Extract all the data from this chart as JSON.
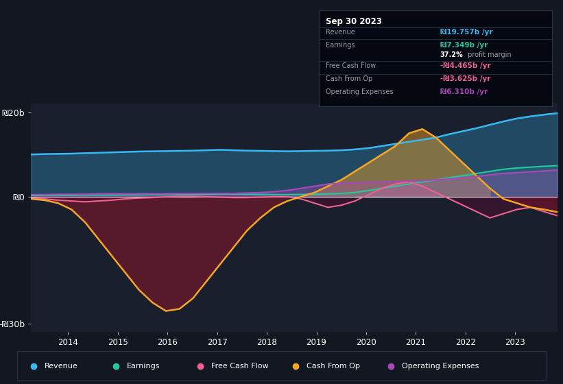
{
  "background_color": "#131722",
  "plot_bg_color": "#1a1f2e",
  "y_label_20b": "₪20b",
  "y_label_0": "₪0",
  "y_label_neg30b": "-₪30b",
  "x_ticks": [
    "2014",
    "2015",
    "2016",
    "2017",
    "2018",
    "2019",
    "2020",
    "2021",
    "2022",
    "2023"
  ],
  "legend_items": [
    {
      "label": "Revenue",
      "color": "#38b8f2"
    },
    {
      "label": "Earnings",
      "color": "#26c6a0"
    },
    {
      "label": "Free Cash Flow",
      "color": "#f06292"
    },
    {
      "label": "Cash From Op",
      "color": "#f5a623"
    },
    {
      "label": "Operating Expenses",
      "color": "#ab47bc"
    }
  ],
  "info_box_title": "Sep 30 2023",
  "revenue": [
    10.0,
    10.1,
    10.15,
    10.2,
    10.3,
    10.4,
    10.5,
    10.6,
    10.7,
    10.75,
    10.8,
    10.85,
    10.9,
    11.0,
    11.1,
    11.0,
    10.9,
    10.85,
    10.8,
    10.75,
    10.8,
    10.85,
    10.9,
    11.0,
    11.2,
    11.5,
    12.0,
    12.5,
    13.0,
    13.5,
    14.0,
    14.8,
    15.5,
    16.2,
    17.0,
    17.8,
    18.5,
    19.0,
    19.4,
    19.757
  ],
  "earnings": [
    0.3,
    0.35,
    0.35,
    0.35,
    0.4,
    0.4,
    0.4,
    0.45,
    0.45,
    0.5,
    0.5,
    0.55,
    0.55,
    0.6,
    0.65,
    0.65,
    0.6,
    0.55,
    0.5,
    0.5,
    0.55,
    0.6,
    0.7,
    0.8,
    1.0,
    1.5,
    2.0,
    2.5,
    3.0,
    3.5,
    4.0,
    4.5,
    5.0,
    5.5,
    6.0,
    6.5,
    6.8,
    7.0,
    7.2,
    7.349
  ],
  "cash_from_op": [
    -0.5,
    -0.8,
    -1.5,
    -3.0,
    -6.0,
    -10.0,
    -14.0,
    -18.0,
    -22.0,
    -25.0,
    -27.0,
    -26.5,
    -24.0,
    -20.0,
    -16.0,
    -12.0,
    -8.0,
    -5.0,
    -2.5,
    -1.0,
    0.0,
    1.0,
    2.5,
    4.0,
    6.0,
    8.0,
    10.0,
    12.0,
    15.0,
    16.0,
    14.0,
    11.0,
    8.0,
    5.0,
    2.0,
    -0.5,
    -1.5,
    -2.5,
    -3.0,
    -3.625
  ],
  "free_cash_flow": [
    -0.3,
    -0.5,
    -0.8,
    -1.0,
    -1.2,
    -1.0,
    -0.8,
    -0.5,
    -0.3,
    -0.2,
    0.0,
    0.1,
    0.1,
    0.0,
    -0.1,
    -0.2,
    -0.2,
    -0.1,
    0.0,
    0.0,
    -0.5,
    -1.5,
    -2.5,
    -2.0,
    -1.0,
    0.5,
    2.0,
    3.0,
    3.5,
    2.5,
    1.0,
    -0.5,
    -2.0,
    -3.5,
    -5.0,
    -4.0,
    -3.0,
    -2.5,
    -3.5,
    -4.465
  ],
  "operating_expenses": [
    0.5,
    0.5,
    0.6,
    0.6,
    0.6,
    0.7,
    0.7,
    0.7,
    0.7,
    0.7,
    0.7,
    0.75,
    0.75,
    0.8,
    0.8,
    0.8,
    0.9,
    1.0,
    1.2,
    1.5,
    2.0,
    2.5,
    3.0,
    3.2,
    3.3,
    3.4,
    3.5,
    3.6,
    3.7,
    3.8,
    4.0,
    4.2,
    4.5,
    4.8,
    5.2,
    5.5,
    5.7,
    5.9,
    6.1,
    6.31
  ],
  "n_points": 40,
  "x_start_year": 2013.25,
  "x_end_year": 2023.85,
  "ylim_min": -32,
  "ylim_max": 22
}
